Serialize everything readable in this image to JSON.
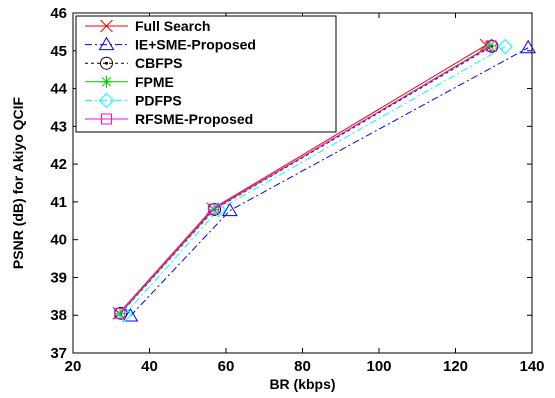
{
  "chart_data": {
    "type": "line",
    "title": "",
    "xlabel": "BR (kbps)",
    "ylabel": "PSNR (dB) for Akiyo QCIF",
    "xlim": [
      20,
      140
    ],
    "ylim": [
      37,
      46
    ],
    "xticks": [
      "20",
      "40",
      "60",
      "80",
      "100",
      "120",
      "140"
    ],
    "yticks": [
      "37",
      "38",
      "39",
      "40",
      "41",
      "42",
      "43",
      "44",
      "45",
      "46"
    ],
    "grid": false,
    "legend_position": "top-left",
    "series": [
      {
        "name": "Full Search",
        "color": "#ff0000",
        "marker": "x",
        "dash": "",
        "x": [
          32,
          56.5,
          128
        ],
        "y": [
          38.05,
          40.82,
          45.15
        ]
      },
      {
        "name": "IE+SME-Proposed",
        "color": "#0000ff",
        "marker": "triangle",
        "dash": "7,3,2,3",
        "x": [
          35,
          61,
          139
        ],
        "y": [
          37.98,
          40.77,
          45.08
        ]
      },
      {
        "name": "CBFPS",
        "color": "#000000",
        "marker": "circle",
        "dash": "3,3",
        "x": [
          32.5,
          57,
          129.5
        ],
        "y": [
          38.05,
          40.8,
          45.12
        ]
      },
      {
        "name": "FPME",
        "color": "#00cc00",
        "marker": "star",
        "dash": "",
        "x": [
          32.3,
          56.8,
          129
        ],
        "y": [
          38.04,
          40.8,
          45.13
        ]
      },
      {
        "name": "PDFPS",
        "color": "#00ffff",
        "marker": "diamond",
        "dash": "7,3,2,3",
        "x": [
          33.5,
          58,
          133
        ],
        "y": [
          38.02,
          40.79,
          45.11
        ]
      },
      {
        "name": "RFSME-Proposed",
        "color": "#ff00ff",
        "marker": "square",
        "dash": "",
        "x": [
          32.2,
          56.7,
          129.3
        ],
        "y": [
          38.05,
          40.81,
          45.13
        ]
      }
    ]
  }
}
